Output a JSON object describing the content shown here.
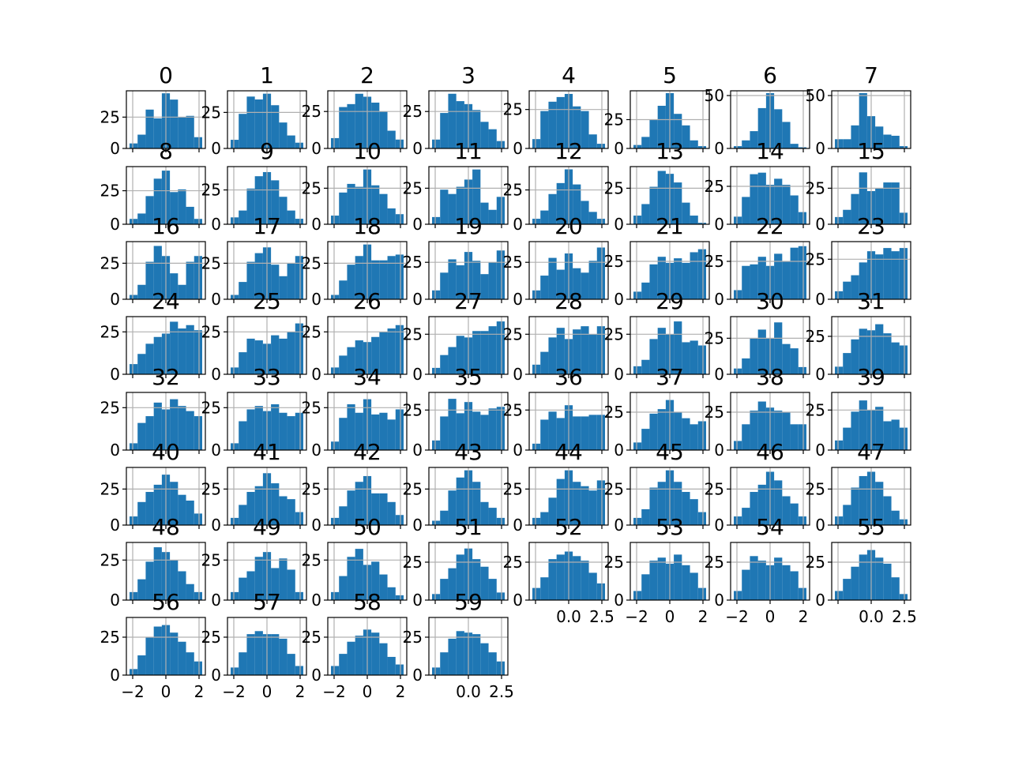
{
  "chart_data": {
    "type": "bar",
    "layout": "grid of histograms, 8 columns x 8 rows (60 panels)",
    "bar_color": "#1f77b4",
    "grid": true,
    "legend": "none",
    "x_ticks": [
      -2,
      0,
      2
    ],
    "x_ticks_alt": [
      "0.0",
      "2.5"
    ],
    "panels": [
      {
        "title": "0",
        "counts": [
          4,
          11,
          31,
          24,
          44,
          39,
          25,
          26,
          9
        ],
        "y_ticks": [
          "0",
          "25"
        ],
        "ylim": [
          0,
          46
        ]
      },
      {
        "title": "1",
        "counts": [
          6,
          24,
          36,
          34,
          38,
          30,
          18,
          9,
          4
        ],
        "y_ticks": [
          "0",
          "25"
        ],
        "ylim": [
          0,
          40
        ]
      },
      {
        "title": "2",
        "counts": [
          7,
          28,
          30,
          37,
          35,
          31,
          25,
          12,
          6
        ],
        "y_ticks": [
          "0",
          "25"
        ],
        "ylim": [
          0,
          39
        ]
      },
      {
        "title": "3",
        "counts": [
          6,
          24,
          37,
          32,
          30,
          26,
          18,
          13,
          5
        ],
        "y_ticks": [
          "0",
          "25"
        ],
        "ylim": [
          0,
          39
        ]
      },
      {
        "title": "4",
        "counts": [
          6,
          24,
          30,
          33,
          35,
          27,
          24,
          9,
          3
        ],
        "y_ticks": [
          "0",
          "25"
        ],
        "ylim": [
          0,
          37
        ]
      },
      {
        "title": "5",
        "counts": [
          3,
          10,
          25,
          37,
          48,
          30,
          20,
          7,
          2
        ],
        "y_ticks": [
          "0",
          "25"
        ],
        "ylim": [
          0,
          50
        ]
      },
      {
        "title": "6",
        "counts": [
          2,
          7,
          15,
          35,
          48,
          34,
          23,
          4,
          1
        ],
        "y_ticks": [
          "0",
          "50"
        ],
        "ylim": [
          0,
          50
        ]
      },
      {
        "title": "7",
        "counts": [
          8,
          8,
          20,
          48,
          28,
          19,
          12,
          11,
          2
        ],
        "y_ticks": [
          "0",
          "50"
        ],
        "ylim": [
          0,
          50
        ]
      },
      {
        "title": "8",
        "counts": [
          4,
          8,
          21,
          34,
          40,
          24,
          26,
          13,
          4
        ],
        "y_ticks": [
          "0",
          "25"
        ],
        "ylim": [
          0,
          43
        ]
      },
      {
        "title": "9",
        "counts": [
          5,
          10,
          26,
          35,
          38,
          32,
          20,
          10,
          4
        ],
        "y_ticks": [
          "0",
          "25"
        ],
        "ylim": [
          0,
          42
        ]
      },
      {
        "title": "10",
        "counts": [
          6,
          22,
          28,
          26,
          38,
          27,
          21,
          11,
          7
        ],
        "y_ticks": [
          "0",
          "25"
        ],
        "ylim": [
          0,
          40
        ]
      },
      {
        "title": "11",
        "counts": [
          5,
          24,
          21,
          26,
          31,
          38,
          15,
          10,
          19
        ],
        "y_ticks": [
          "0",
          "25"
        ],
        "ylim": [
          0,
          40
        ]
      },
      {
        "title": "12",
        "counts": [
          4,
          10,
          22,
          30,
          40,
          29,
          17,
          9,
          4
        ],
        "y_ticks": [
          "0",
          "25"
        ],
        "ylim": [
          0,
          42
        ]
      },
      {
        "title": "13",
        "counts": [
          6,
          14,
          26,
          37,
          35,
          29,
          15,
          6,
          1
        ],
        "y_ticks": [
          "0",
          "25"
        ],
        "ylim": [
          0,
          40
        ]
      },
      {
        "title": "14",
        "counts": [
          5,
          18,
          33,
          34,
          26,
          30,
          26,
          19,
          8
        ],
        "y_ticks": [
          "0",
          "25"
        ],
        "ylim": [
          0,
          38
        ]
      },
      {
        "title": "15",
        "counts": [
          5,
          10,
          21,
          36,
          23,
          25,
          29,
          29,
          8
        ],
        "y_ticks": [
          "0",
          "25"
        ],
        "ylim": [
          0,
          40
        ]
      },
      {
        "title": "16",
        "counts": [
          3,
          10,
          26,
          37,
          30,
          18,
          10,
          26,
          30
        ],
        "y_ticks": [
          "0",
          "25"
        ],
        "ylim": [
          0,
          40
        ]
      },
      {
        "title": "17",
        "counts": [
          3,
          12,
          26,
          32,
          36,
          24,
          16,
          25,
          30
        ],
        "y_ticks": [
          "0",
          "25"
        ],
        "ylim": [
          0,
          40
        ]
      },
      {
        "title": "18",
        "counts": [
          3,
          13,
          24,
          30,
          38,
          27,
          27,
          30,
          31
        ],
        "y_ticks": [
          "0",
          "25"
        ],
        "ylim": [
          0,
          40
        ]
      },
      {
        "title": "19",
        "counts": [
          6,
          18,
          27,
          23,
          32,
          26,
          17,
          25,
          33
        ],
        "y_ticks": [
          "0",
          "25"
        ],
        "ylim": [
          0,
          39
        ]
      },
      {
        "title": "20",
        "counts": [
          6,
          16,
          28,
          20,
          31,
          21,
          18,
          26,
          35
        ],
        "y_ticks": [
          "0",
          "25"
        ],
        "ylim": [
          0,
          39
        ]
      },
      {
        "title": "21",
        "counts": [
          5,
          11,
          23,
          28,
          24,
          27,
          24,
          31,
          33
        ],
        "y_ticks": [
          "0",
          "25"
        ],
        "ylim": [
          0,
          38
        ]
      },
      {
        "title": "22",
        "counts": [
          6,
          22,
          23,
          28,
          22,
          30,
          25,
          34,
          35
        ],
        "y_ticks": [
          "0",
          "25"
        ],
        "ylim": [
          0,
          38
        ]
      },
      {
        "title": "23",
        "counts": [
          5,
          11,
          15,
          23,
          30,
          28,
          32,
          30,
          32
        ],
        "y_ticks": [
          "0",
          "25"
        ],
        "ylim": [
          0,
          36
        ]
      },
      {
        "title": "24",
        "counts": [
          6,
          12,
          18,
          22,
          24,
          31,
          27,
          29,
          26
        ],
        "y_ticks": [
          "0",
          "25"
        ],
        "ylim": [
          0,
          34
        ]
      },
      {
        "title": "25",
        "counts": [
          4,
          13,
          21,
          20,
          18,
          23,
          21,
          25,
          30
        ],
        "y_ticks": [
          "0",
          "25"
        ],
        "ylim": [
          0,
          34
        ]
      },
      {
        "title": "26",
        "counts": [
          4,
          11,
          16,
          20,
          19,
          22,
          25,
          27,
          29
        ],
        "y_ticks": [
          "0",
          "25"
        ],
        "ylim": [
          0,
          34
        ]
      },
      {
        "title": "27",
        "counts": [
          4,
          12,
          17,
          24,
          23,
          27,
          27,
          30,
          33
        ],
        "y_ticks": [
          "0",
          "25"
        ],
        "ylim": [
          0,
          36
        ]
      },
      {
        "title": "28",
        "counts": [
          6,
          14,
          23,
          29,
          22,
          28,
          30,
          25,
          30
        ],
        "y_ticks": [
          "0",
          "25"
        ],
        "ylim": [
          0,
          36
        ]
      },
      {
        "title": "29",
        "counts": [
          5,
          9,
          22,
          29,
          25,
          33,
          20,
          21,
          18
        ],
        "y_ticks": [
          "0",
          "25"
        ],
        "ylim": [
          0,
          36
        ]
      },
      {
        "title": "30",
        "counts": [
          4,
          11,
          25,
          31,
          25,
          36,
          21,
          18,
          5
        ],
        "y_ticks": [
          "0",
          "25"
        ],
        "ylim": [
          0,
          40
        ]
      },
      {
        "title": "31",
        "counts": [
          5,
          14,
          23,
          30,
          29,
          33,
          27,
          21,
          19
        ],
        "y_ticks": [
          "0",
          "25"
        ],
        "ylim": [
          0,
          38
        ]
      },
      {
        "title": "32",
        "counts": [
          4,
          16,
          20,
          28,
          24,
          30,
          26,
          23,
          20
        ],
        "y_ticks": [
          "0",
          "25"
        ],
        "ylim": [
          0,
          34
        ]
      },
      {
        "title": "33",
        "counts": [
          4,
          17,
          24,
          26,
          23,
          27,
          22,
          20,
          22
        ],
        "y_ticks": [
          "0",
          "25"
        ],
        "ylim": [
          0,
          34
        ]
      },
      {
        "title": "34",
        "counts": [
          5,
          19,
          27,
          22,
          30,
          21,
          22,
          18,
          24
        ],
        "y_ticks": [
          "0",
          "25"
        ],
        "ylim": [
          0,
          34
        ]
      },
      {
        "title": "35",
        "counts": [
          6,
          21,
          32,
          23,
          30,
          24,
          22,
          26,
          27
        ],
        "y_ticks": [
          "0",
          "25"
        ],
        "ylim": [
          0,
          36
        ]
      },
      {
        "title": "36",
        "counts": [
          4,
          19,
          24,
          20,
          28,
          21,
          21,
          22,
          22
        ],
        "y_ticks": [
          "0",
          "25"
        ],
        "ylim": [
          0,
          36
        ]
      },
      {
        "title": "37",
        "counts": [
          5,
          14,
          24,
          27,
          33,
          25,
          21,
          17,
          19
        ],
        "y_ticks": [
          "0",
          "25"
        ],
        "ylim": [
          0,
          38
        ]
      },
      {
        "title": "38",
        "counts": [
          6,
          17,
          26,
          32,
          28,
          26,
          25,
          17,
          17
        ],
        "y_ticks": [
          "0",
          "25"
        ],
        "ylim": [
          0,
          38
        ]
      },
      {
        "title": "39",
        "counts": [
          6,
          14,
          24,
          31,
          25,
          27,
          18,
          19,
          14
        ],
        "y_ticks": [
          "0",
          "25"
        ],
        "ylim": [
          0,
          36
        ]
      },
      {
        "title": "40",
        "counts": [
          6,
          16,
          23,
          28,
          35,
          30,
          21,
          17,
          8
        ],
        "y_ticks": [
          "0",
          "25"
        ],
        "ylim": [
          0,
          40
        ]
      },
      {
        "title": "41",
        "counts": [
          5,
          14,
          23,
          27,
          36,
          29,
          20,
          18,
          9
        ],
        "y_ticks": [
          "0",
          "25"
        ],
        "ylim": [
          0,
          40
        ]
      },
      {
        "title": "42",
        "counts": [
          5,
          13,
          24,
          30,
          34,
          22,
          22,
          16,
          7
        ],
        "y_ticks": [
          "0",
          "25"
        ],
        "ylim": [
          0,
          40
        ]
      },
      {
        "title": "43",
        "counts": [
          3,
          10,
          24,
          33,
          38,
          30,
          16,
          12,
          5
        ],
        "y_ticks": [
          "0",
          "25"
        ],
        "ylim": [
          0,
          40
        ]
      },
      {
        "title": "44",
        "counts": [
          5,
          9,
          19,
          32,
          38,
          30,
          27,
          24,
          31
        ],
        "y_ticks": [
          "0",
          "25"
        ],
        "ylim": [
          0,
          40
        ]
      },
      {
        "title": "45",
        "counts": [
          5,
          11,
          26,
          30,
          38,
          30,
          23,
          18,
          9
        ],
        "y_ticks": [
          "0",
          "25"
        ],
        "ylim": [
          0,
          40
        ]
      },
      {
        "title": "46",
        "counts": [
          6,
          12,
          23,
          28,
          37,
          31,
          20,
          15,
          6
        ],
        "y_ticks": [
          "0",
          "25"
        ],
        "ylim": [
          0,
          40
        ]
      },
      {
        "title": "47",
        "counts": [
          6,
          14,
          26,
          34,
          37,
          30,
          20,
          10,
          4
        ],
        "y_ticks": [
          "0",
          "25"
        ],
        "ylim": [
          0,
          40
        ]
      },
      {
        "title": "48",
        "counts": [
          5,
          13,
          24,
          33,
          30,
          25,
          18,
          10,
          5
        ],
        "y_ticks": [
          "0",
          "25"
        ],
        "ylim": [
          0,
          36
        ]
      },
      {
        "title": "49",
        "counts": [
          5,
          14,
          18,
          27,
          30,
          20,
          26,
          19,
          5
        ],
        "y_ticks": [
          "0",
          "25"
        ],
        "ylim": [
          0,
          36
        ]
      },
      {
        "title": "50",
        "counts": [
          5,
          15,
          27,
          32,
          22,
          24,
          16,
          8,
          3
        ],
        "y_ticks": [
          "0",
          "25"
        ],
        "ylim": [
          0,
          36
        ]
      },
      {
        "title": "51",
        "counts": [
          4,
          14,
          21,
          30,
          34,
          27,
          22,
          14,
          5
        ],
        "y_ticks": [
          "0",
          "25"
        ],
        "ylim": [
          0,
          38
        ]
      },
      {
        "title": "52",
        "counts": [
          8,
          15,
          27,
          30,
          32,
          29,
          26,
          18,
          11
        ],
        "y_ticks": [
          "0",
          "25"
        ],
        "ylim": [
          0,
          38
        ]
      },
      {
        "title": "53",
        "counts": [
          6,
          17,
          26,
          28,
          24,
          30,
          23,
          18,
          8
        ],
        "y_ticks": [
          "0",
          "25"
        ],
        "ylim": [
          0,
          38
        ]
      },
      {
        "title": "54",
        "counts": [
          6,
          20,
          29,
          26,
          23,
          28,
          23,
          19,
          8
        ],
        "y_ticks": [
          "0",
          "25"
        ],
        "ylim": [
          0,
          38
        ]
      },
      {
        "title": "55",
        "counts": [
          6,
          14,
          22,
          30,
          33,
          28,
          24,
          15,
          4
        ],
        "y_ticks": [
          "0",
          "25"
        ],
        "ylim": [
          0,
          38
        ]
      },
      {
        "title": "56",
        "counts": [
          4,
          13,
          25,
          32,
          33,
          28,
          22,
          15,
          9
        ],
        "y_ticks": [
          "0",
          "25"
        ],
        "ylim": [
          0,
          38
        ]
      },
      {
        "title": "57",
        "counts": [
          5,
          15,
          27,
          29,
          27,
          27,
          24,
          14,
          6
        ],
        "y_ticks": [
          "0",
          "25"
        ],
        "ylim": [
          0,
          38
        ]
      },
      {
        "title": "58",
        "counts": [
          6,
          14,
          22,
          26,
          30,
          28,
          21,
          12,
          7
        ],
        "y_ticks": [
          "0",
          "25"
        ],
        "ylim": [
          0,
          38
        ]
      },
      {
        "title": "59",
        "counts": [
          5,
          15,
          24,
          29,
          28,
          27,
          21,
          15,
          9
        ],
        "y_ticks": [
          "0",
          "25"
        ],
        "ylim": [
          0,
          38
        ]
      }
    ]
  }
}
